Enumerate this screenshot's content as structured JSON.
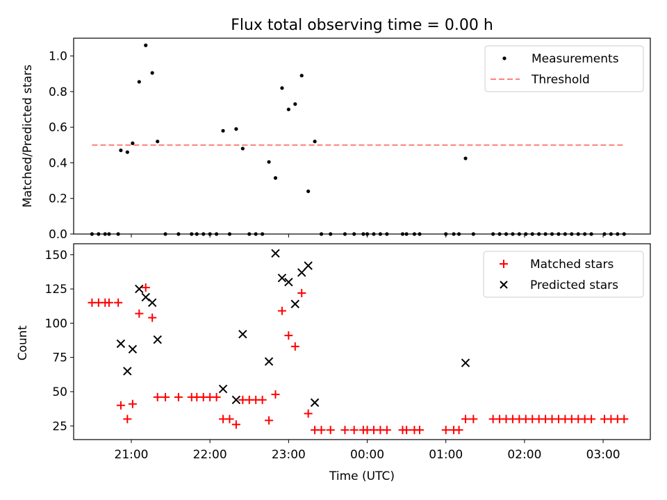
{
  "chart_data": [
    {
      "type": "scatter",
      "title": "Flux total observing time = 0.00 h",
      "xlabel": "",
      "ylabel": "Matched/Predicted stars",
      "xlim": [
        "20:16",
        "03:36"
      ],
      "ylim": [
        0,
        1.1
      ],
      "yticks": [
        "0.0",
        "0.2",
        "0.4",
        "0.6",
        "0.8",
        "1.0"
      ],
      "grid": false,
      "legend": "top-right",
      "series": [
        {
          "name": "Measurements",
          "color": "#000000",
          "marker": "dot",
          "points": [
            [
              "20:30",
              0
            ],
            [
              "20:35",
              0
            ],
            [
              "20:40",
              0
            ],
            [
              "20:43",
              0
            ],
            [
              "20:50",
              0
            ],
            [
              "20:52",
              0.47
            ],
            [
              "20:57",
              0.46
            ],
            [
              "21:01",
              0.51
            ],
            [
              "21:06",
              0.855
            ],
            [
              "21:11",
              1.06
            ],
            [
              "21:16",
              0.905
            ],
            [
              "21:20",
              0.52
            ],
            [
              "21:26",
              0
            ],
            [
              "21:36",
              0
            ],
            [
              "21:46",
              0
            ],
            [
              "21:50",
              0
            ],
            [
              "21:55",
              0
            ],
            [
              "22:00",
              0
            ],
            [
              "22:05",
              0
            ],
            [
              "22:10",
              0.58
            ],
            [
              "22:15",
              0
            ],
            [
              "22:20",
              0.59
            ],
            [
              "22:25",
              0.48
            ],
            [
              "22:30",
              0
            ],
            [
              "22:35",
              0
            ],
            [
              "22:40",
              0
            ],
            [
              "22:45",
              0.405
            ],
            [
              "22:50",
              0.315
            ],
            [
              "22:55",
              0.82
            ],
            [
              "23:00",
              0.7
            ],
            [
              "23:05",
              0.73
            ],
            [
              "23:10",
              0.89
            ],
            [
              "23:15",
              0.24
            ],
            [
              "23:20",
              0.52
            ],
            [
              "23:25",
              0
            ],
            [
              "23:32",
              0
            ],
            [
              "23:43",
              0
            ],
            [
              "23:50",
              0
            ],
            [
              "23:57",
              0
            ],
            [
              "24:00",
              0
            ],
            [
              "24:05",
              0
            ],
            [
              "24:10",
              0
            ],
            [
              "24:15",
              0
            ],
            [
              "24:27",
              0
            ],
            [
              "24:30",
              0
            ],
            [
              "24:36",
              0
            ],
            [
              "24:40",
              0
            ],
            [
              "25:00",
              0
            ],
            [
              "25:06",
              0
            ],
            [
              "25:10",
              0
            ],
            [
              "25:21",
              0
            ],
            [
              "25:15",
              0.425
            ],
            [
              "25:36",
              0
            ],
            [
              "25:41",
              0
            ],
            [
              "25:46",
              0
            ],
            [
              "25:51",
              0
            ],
            [
              "25:56",
              0
            ],
            [
              "26:01",
              0
            ],
            [
              "26:06",
              0
            ],
            [
              "26:11",
              0
            ],
            [
              "26:16",
              0
            ],
            [
              "26:21",
              0
            ],
            [
              "26:26",
              0
            ],
            [
              "26:31",
              0
            ],
            [
              "26:36",
              0
            ],
            [
              "26:41",
              0
            ],
            [
              "26:46",
              0
            ],
            [
              "26:51",
              0
            ],
            [
              "27:01",
              0
            ],
            [
              "27:06",
              0
            ],
            [
              "27:11",
              0
            ],
            [
              "27:16",
              0
            ]
          ]
        },
        {
          "name": "Threshold",
          "color": "#ff7f7f",
          "style": "dashed",
          "points": [
            [
              "20:30",
              0.5
            ],
            [
              "27:16",
              0.5
            ]
          ]
        }
      ]
    },
    {
      "type": "scatter",
      "title": "",
      "xlabel": "Time (UTC)",
      "ylabel": "Count",
      "xlim": [
        "20:16",
        "03:36"
      ],
      "ylim": [
        15,
        158
      ],
      "yticks": [
        "25",
        "50",
        "75",
        "100",
        "125",
        "150"
      ],
      "xticks": [
        "21:00",
        "22:00",
        "23:00",
        "00:00",
        "01:00",
        "02:00",
        "03:00"
      ],
      "grid": false,
      "legend": "top-right",
      "series": [
        {
          "name": "Matched stars",
          "color": "#ff0000",
          "marker": "plus",
          "points": [
            [
              "20:30",
              115
            ],
            [
              "20:35",
              115
            ],
            [
              "20:40",
              115
            ],
            [
              "20:43",
              115
            ],
            [
              "20:50",
              115
            ],
            [
              "20:52",
              40
            ],
            [
              "20:57",
              30
            ],
            [
              "21:01",
              41
            ],
            [
              "21:06",
              107
            ],
            [
              "21:11",
              126
            ],
            [
              "21:16",
              104
            ],
            [
              "21:20",
              46
            ],
            [
              "21:26",
              46
            ],
            [
              "21:36",
              46
            ],
            [
              "21:46",
              46
            ],
            [
              "21:50",
              46
            ],
            [
              "21:55",
              46
            ],
            [
              "22:00",
              46
            ],
            [
              "22:05",
              46
            ],
            [
              "22:10",
              30
            ],
            [
              "22:15",
              30
            ],
            [
              "22:20",
              26
            ],
            [
              "22:25",
              44
            ],
            [
              "22:30",
              44
            ],
            [
              "22:35",
              44
            ],
            [
              "22:40",
              44
            ],
            [
              "22:45",
              29
            ],
            [
              "22:50",
              48
            ],
            [
              "22:55",
              109
            ],
            [
              "23:00",
              91
            ],
            [
              "23:05",
              83
            ],
            [
              "23:10",
              122
            ],
            [
              "23:15",
              34
            ],
            [
              "23:20",
              22
            ],
            [
              "23:25",
              22
            ],
            [
              "23:32",
              22
            ],
            [
              "23:43",
              22
            ],
            [
              "23:50",
              22
            ],
            [
              "23:57",
              22
            ],
            [
              "24:00",
              22
            ],
            [
              "24:05",
              22
            ],
            [
              "24:10",
              22
            ],
            [
              "24:15",
              22
            ],
            [
              "24:27",
              22
            ],
            [
              "24:30",
              22
            ],
            [
              "24:36",
              22
            ],
            [
              "24:40",
              22
            ],
            [
              "25:00",
              22
            ],
            [
              "25:06",
              22
            ],
            [
              "25:10",
              22
            ],
            [
              "25:15",
              30
            ],
            [
              "25:21",
              30
            ],
            [
              "25:36",
              30
            ],
            [
              "25:41",
              30
            ],
            [
              "25:46",
              30
            ],
            [
              "25:51",
              30
            ],
            [
              "25:56",
              30
            ],
            [
              "26:01",
              30
            ],
            [
              "26:06",
              30
            ],
            [
              "26:11",
              30
            ],
            [
              "26:16",
              30
            ],
            [
              "26:21",
              30
            ],
            [
              "26:26",
              30
            ],
            [
              "26:31",
              30
            ],
            [
              "26:36",
              30
            ],
            [
              "26:41",
              30
            ],
            [
              "26:46",
              30
            ],
            [
              "26:51",
              30
            ],
            [
              "27:01",
              30
            ],
            [
              "27:06",
              30
            ],
            [
              "27:11",
              30
            ],
            [
              "27:16",
              30
            ]
          ]
        },
        {
          "name": "Predicted stars",
          "color": "#000000",
          "marker": "x",
          "points": [
            [
              "20:52",
              85
            ],
            [
              "20:57",
              65
            ],
            [
              "21:01",
              81
            ],
            [
              "21:06",
              125
            ],
            [
              "21:11",
              119
            ],
            [
              "21:16",
              115
            ],
            [
              "21:20",
              88
            ],
            [
              "22:10",
              52
            ],
            [
              "22:20",
              44
            ],
            [
              "22:25",
              92
            ],
            [
              "22:45",
              72
            ],
            [
              "22:50",
              151
            ],
            [
              "22:55",
              133
            ],
            [
              "23:00",
              130
            ],
            [
              "23:05",
              114
            ],
            [
              "23:10",
              137
            ],
            [
              "23:15",
              142
            ],
            [
              "23:20",
              42
            ],
            [
              "25:15",
              71
            ]
          ]
        }
      ]
    }
  ]
}
